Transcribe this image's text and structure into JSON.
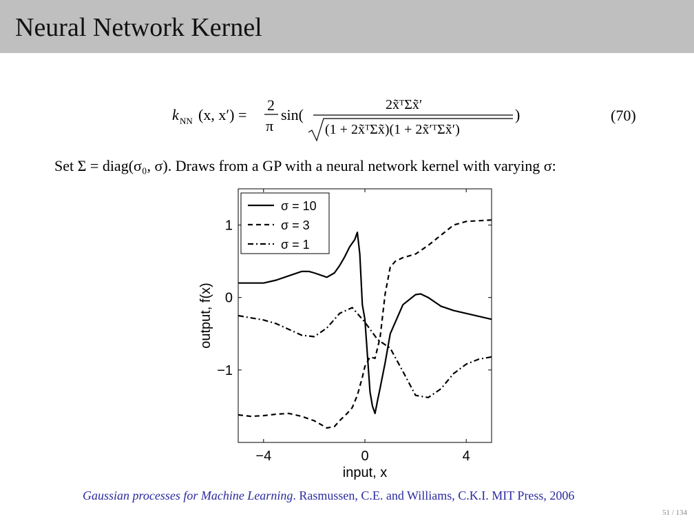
{
  "slide": {
    "title": "Neural Network Kernel",
    "equation_number": "(70)",
    "set_line": "Set Σ = diag(σ₀, σ). Draws from a GP with a neural network kernel with varying σ:",
    "citation_title": "Gaussian processes for Machine Learning",
    "citation_rest": ". Rasmussen, C.E. and Williams, C.K.I. MIT Press, 2006",
    "page": "51 / 134"
  },
  "equation": {
    "lhs": "k",
    "lhs_sub": "NN",
    "lhs_args": "(x, x′) = ",
    "frac_num": "2",
    "frac_den": "π",
    "sin": "sin(",
    "numerator": "2x̃ᵀΣx̃′",
    "denominator": "(1 + 2x̃ᵀΣx̃)(1 + 2x̃′ᵀΣx̃′)",
    "close": ")"
  },
  "chart_data": {
    "type": "line",
    "xlabel": "input, x",
    "ylabel": "output, f(x)",
    "xlim": [
      -5,
      5
    ],
    "ylim": [
      -2,
      1.5
    ],
    "xticks": [
      -4,
      0,
      4
    ],
    "xtick_labels": [
      "−4",
      "0",
      "4"
    ],
    "yticks": [
      1,
      0,
      -1
    ],
    "ytick_labels": [
      "1",
      "0",
      "−1"
    ],
    "grid": false,
    "legend_position": "top-left",
    "series": [
      {
        "name": "σ = 10",
        "style": "solid",
        "x": [
          -5,
          -4.5,
          -4,
          -3.5,
          -3,
          -2.5,
          -2.2,
          -2,
          -1.5,
          -1.2,
          -1,
          -0.8,
          -0.6,
          -0.4,
          -0.3,
          -0.2,
          -0.1,
          0,
          0.1,
          0.2,
          0.3,
          0.4,
          0.5,
          0.6,
          0.8,
          1,
          1.5,
          2,
          2.2,
          2.5,
          3,
          3.5,
          4,
          4.5,
          5
        ],
        "y": [
          0.2,
          0.2,
          0.2,
          0.24,
          0.3,
          0.36,
          0.36,
          0.34,
          0.28,
          0.34,
          0.44,
          0.56,
          0.7,
          0.8,
          0.9,
          0.6,
          -0.1,
          -0.3,
          -0.8,
          -1.3,
          -1.5,
          -1.6,
          -1.42,
          -1.25,
          -0.9,
          -0.5,
          -0.1,
          0.04,
          0.05,
          0.0,
          -0.12,
          -0.18,
          -0.22,
          -0.26,
          -0.3
        ]
      },
      {
        "name": "σ = 3",
        "style": "dashed",
        "x": [
          -5,
          -4.5,
          -4,
          -3.5,
          -3,
          -2.5,
          -2,
          -1.5,
          -1.2,
          -1,
          -0.7,
          -0.5,
          -0.3,
          -0.1,
          0,
          0.2,
          0.4,
          0.6,
          0.8,
          1,
          1.2,
          1.5,
          2,
          2.5,
          3,
          3.5,
          4,
          4.5,
          5
        ],
        "y": [
          -1.62,
          -1.64,
          -1.63,
          -1.61,
          -1.6,
          -1.64,
          -1.7,
          -1.8,
          -1.78,
          -1.7,
          -1.6,
          -1.52,
          -1.35,
          -1.1,
          -0.95,
          -0.82,
          -0.84,
          -0.55,
          0.05,
          0.42,
          0.5,
          0.55,
          0.6,
          0.72,
          0.86,
          1.0,
          1.05,
          1.06,
          1.07
        ]
      },
      {
        "name": "σ = 1",
        "style": "dashdot",
        "x": [
          -5,
          -4.5,
          -4,
          -3.5,
          -3,
          -2.5,
          -2,
          -1.5,
          -1,
          -0.5,
          0,
          0.5,
          1,
          1.5,
          2,
          2.5,
          3,
          3.5,
          4,
          4.5,
          5
        ],
        "y": [
          -0.25,
          -0.28,
          -0.31,
          -0.36,
          -0.44,
          -0.52,
          -0.54,
          -0.42,
          -0.22,
          -0.14,
          -0.34,
          -0.58,
          -0.7,
          -1.02,
          -1.35,
          -1.38,
          -1.26,
          -1.05,
          -0.92,
          -0.85,
          -0.82
        ]
      }
    ]
  }
}
